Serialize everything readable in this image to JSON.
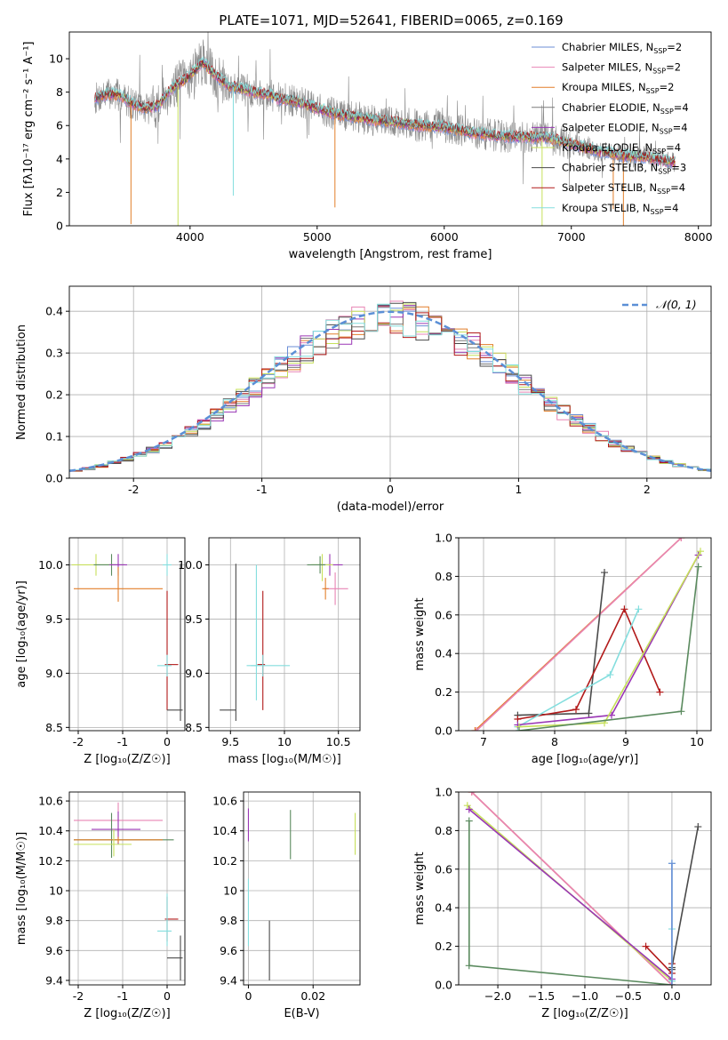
{
  "title": "PLATE=1071, MJD=52641, FIBERID=0065, z=0.169",
  "colors": {
    "chabrier_miles": "#6b8ed6",
    "salpeter_miles": "#e884b4",
    "kroupa_miles": "#e27f2a",
    "chabrier_elodie": "#7a7a7a",
    "salpeter_elodie": "#9a37b5",
    "kroupa_elodie": "#c6e05a",
    "chabrier_stelib": "#4a4a4a",
    "salpeter_stelib": "#b21a1a",
    "kroupa_stelib": "#84dede",
    "green_line": "#5a8a5e",
    "gaussian": "#5b8fd6"
  },
  "chart_data": [
    {
      "id": "spectrum",
      "type": "line",
      "title": "PLATE=1071, MJD=52641, FIBERID=0065, z=0.169",
      "xlabel": "wavelength [Angstrom, rest frame]",
      "ylabel": "Flux [fλ10⁻¹⁷ erg cm⁻² s⁻¹ A⁻¹]",
      "xlim": [
        3050,
        8100
      ],
      "ylim": [
        0,
        11.6
      ],
      "xticks": [
        4000,
        5000,
        6000,
        7000,
        8000
      ],
      "yticks": [
        0,
        2,
        4,
        6,
        8,
        10
      ],
      "grid": false,
      "legend_position": "top-right",
      "legend": [
        {
          "base": "Chabrier MILES, N",
          "sub": "SSP",
          "tail": "=2",
          "color_key": "chabrier_miles"
        },
        {
          "base": "Salpeter MILES, N",
          "sub": "SSP",
          "tail": "=2",
          "color_key": "salpeter_miles"
        },
        {
          "base": "Kroupa MILES, N",
          "sub": "SSP",
          "tail": "=2",
          "color_key": "kroupa_miles"
        },
        {
          "base": "Chabrier ELODIE, N",
          "sub": "SSP",
          "tail": "=4",
          "color_key": "chabrier_elodie"
        },
        {
          "base": "Salpeter ELODIE, N",
          "sub": "SSP",
          "tail": "=4",
          "color_key": "salpeter_elodie"
        },
        {
          "base": "Kroupa ELODIE, N",
          "sub": "SSP",
          "tail": "=4",
          "color_key": "kroupa_elodie"
        },
        {
          "base": "Chabrier STELIB, N",
          "sub": "SSP",
          "tail": "=3",
          "color_key": "chabrier_stelib"
        },
        {
          "base": "Salpeter STELIB, N",
          "sub": "SSP",
          "tail": "=4",
          "color_key": "salpeter_stelib"
        },
        {
          "base": "Kroupa STELIB, N",
          "sub": "SSP",
          "tail": "=4",
          "color_key": "kroupa_stelib"
        }
      ],
      "continuum": [
        [
          3250,
          7.6
        ],
        [
          3350,
          7.9
        ],
        [
          3450,
          7.8
        ],
        [
          3550,
          7.3
        ],
        [
          3650,
          7.0
        ],
        [
          3750,
          7.2
        ],
        [
          3850,
          8.2
        ],
        [
          3950,
          8.7
        ],
        [
          4000,
          9.0
        ],
        [
          4100,
          9.8
        ],
        [
          4200,
          9.0
        ],
        [
          4300,
          8.4
        ],
        [
          4400,
          8.2
        ],
        [
          4500,
          8.0
        ],
        [
          4600,
          7.9
        ],
        [
          4700,
          7.6
        ],
        [
          4800,
          7.5
        ],
        [
          4900,
          7.3
        ],
        [
          5000,
          7.0
        ],
        [
          5100,
          6.8
        ],
        [
          5200,
          6.6
        ],
        [
          5300,
          6.5
        ],
        [
          5400,
          6.4
        ],
        [
          5500,
          6.3
        ],
        [
          5600,
          6.2
        ],
        [
          5800,
          6.0
        ],
        [
          6000,
          5.9
        ],
        [
          6200,
          5.6
        ],
        [
          6400,
          5.4
        ],
        [
          6600,
          5.3
        ],
        [
          6800,
          5.3
        ],
        [
          7000,
          4.9
        ],
        [
          7200,
          4.5
        ],
        [
          7400,
          4.2
        ],
        [
          7600,
          4.1
        ],
        [
          7800,
          3.8
        ]
      ],
      "absorption_dips": [
        {
          "x": 3535,
          "min": 0.1,
          "series": "kroupa_miles"
        },
        {
          "x": 3905,
          "min": 0.0,
          "series": "kroupa_elodie"
        },
        {
          "x": 4340,
          "min": 1.8,
          "series": "kroupa_stelib"
        },
        {
          "x": 5140,
          "min": 1.1,
          "series": "kroupa_miles"
        },
        {
          "x": 6770,
          "min": 0.0,
          "series": "kroupa_elodie"
        },
        {
          "x": 7330,
          "min": 1.0,
          "series": "kroupa_miles"
        },
        {
          "x": 7410,
          "min": 0.0,
          "series": "kroupa_miles"
        }
      ]
    },
    {
      "id": "residuals",
      "type": "histogram",
      "xlabel": "(data-model)/error",
      "ylabel": "Normed distribution",
      "xlim": [
        -2.5,
        2.5
      ],
      "ylim": [
        0,
        0.46
      ],
      "xticks": [
        -2,
        -1,
        0,
        1,
        2
      ],
      "yticks": [
        0.0,
        0.1,
        0.2,
        0.3,
        0.4
      ],
      "grid": true,
      "legend_position": "top-right",
      "reference_curve": {
        "name": "𝒩(0, 1)",
        "style": "dashed",
        "mean": 0,
        "sigma": 1
      },
      "bin_width": 0.1
    },
    {
      "id": "age_vs_Z",
      "type": "errorbar",
      "xlabel": "Z [log₁₀(Z/Z☉)]",
      "ylabel": "age  [log₁₀(age/yr)]",
      "xlim": [
        -2.2,
        0.4
      ],
      "ylim": [
        8.47,
        10.25
      ],
      "xticks": [
        -2,
        -1,
        0
      ],
      "yticks": [
        8.5,
        9.0,
        9.5,
        10.0
      ],
      "grid": true,
      "points": [
        {
          "color_key": "kroupa_elodie",
          "x": -1.6,
          "y": 10.0,
          "xerr": [
            0.55,
            0.45
          ],
          "yerr": [
            0.1,
            0.1
          ]
        },
        {
          "color_key": "green_line",
          "x": -1.25,
          "y": 10.0,
          "xerr": [
            0.4,
            0.3
          ],
          "yerr": [
            0.1,
            0.1
          ]
        },
        {
          "color_key": "salpeter_elodie",
          "x": -1.1,
          "y": 10.0,
          "xerr": [
            0.2,
            0.2
          ],
          "yerr": [
            0.1,
            0.1
          ]
        },
        {
          "color_key": "kroupa_stelib",
          "x": 0.0,
          "y": 10.0,
          "xerr": [
            0.1,
            0.1
          ],
          "yerr": [
            0.1,
            0.1
          ]
        },
        {
          "color_key": "kroupa_miles",
          "x": -1.1,
          "y": 9.78,
          "xerr": [
            1.0,
            1.0
          ],
          "yerr": [
            0.12,
            0.2
          ]
        },
        {
          "color_key": "salpeter_stelib",
          "x": 0.0,
          "y": 9.08,
          "xerr": [
            0.05,
            0.25
          ],
          "yerr": [
            0.42,
            0.68
          ]
        },
        {
          "color_key": "kroupa_stelib",
          "x": 0.0,
          "y": 9.07,
          "xerr": [
            0.22,
            0.1
          ],
          "yerr": [
            0.1,
            0.1
          ]
        },
        {
          "color_key": "chabrier_stelib",
          "x": 0.3,
          "y": 8.66,
          "xerr": [
            0.3,
            0.05
          ],
          "yerr": [
            0.1,
            1.35
          ]
        }
      ]
    },
    {
      "id": "age_vs_mass",
      "type": "errorbar",
      "xlabel": "mass [log₁₀(M/M☉)]",
      "ylabel": "",
      "xlim": [
        9.3,
        10.7
      ],
      "ylim": [
        8.47,
        10.25
      ],
      "xticks": [
        9.5,
        10.0,
        10.5
      ],
      "yticks": [
        8.5,
        9.0,
        9.5,
        10.0
      ],
      "grid": true,
      "points": [
        {
          "color_key": "salpeter_elodie",
          "x": 10.42,
          "y": 10.0,
          "xerr": [
            0.1,
            0.12
          ],
          "yerr": [
            0.1,
            0.1
          ]
        },
        {
          "color_key": "kroupa_elodie",
          "x": 10.35,
          "y": 10.0,
          "xerr": [
            0.1,
            0.1
          ],
          "yerr": [
            0.15,
            0.1
          ]
        },
        {
          "color_key": "green_line",
          "x": 10.33,
          "y": 10.0,
          "xerr": [
            0.12,
            0.05
          ],
          "yerr": [
            0.08,
            0.08
          ]
        },
        {
          "color_key": "salpeter_miles",
          "x": 10.47,
          "y": 9.78,
          "xerr": [
            0.1,
            0.12
          ],
          "yerr": [
            0.15,
            0.15
          ]
        },
        {
          "color_key": "kroupa_miles",
          "x": 10.38,
          "y": 9.78,
          "xerr": [
            0.03,
            0.03
          ],
          "yerr": [
            0.1,
            0.1
          ]
        },
        {
          "color_key": "kroupa_stelib",
          "x": 9.74,
          "y": 9.07,
          "xerr": [
            0.05,
            0.01
          ],
          "yerr": [
            0.32,
            0.93
          ]
        },
        {
          "color_key": "salpeter_stelib",
          "x": 9.8,
          "y": 9.08,
          "xerr": [
            0.05,
            0.02
          ],
          "yerr": [
            0.42,
            0.68
          ]
        },
        {
          "color_key": "kroupa_stelib",
          "x": 9.8,
          "y": 9.07,
          "xerr": [
            0.15,
            0.25
          ],
          "yerr": [
            0.1,
            0.1
          ]
        },
        {
          "color_key": "chabrier_stelib",
          "x": 9.55,
          "y": 8.66,
          "xerr": [
            0.15,
            0.0
          ],
          "yerr": [
            0.1,
            1.35
          ]
        }
      ]
    },
    {
      "id": "massweight_vs_age",
      "type": "line",
      "xlabel": "age  [log₁₀(age/yr)]",
      "ylabel": "mass weight",
      "xlim": [
        6.65,
        10.2
      ],
      "ylim": [
        0,
        1.0
      ],
      "xticks": [
        7,
        8,
        9,
        10
      ],
      "yticks": [
        0.0,
        0.2,
        0.4,
        0.6,
        0.8,
        1.0
      ],
      "grid": true,
      "series": [
        {
          "color_key": "kroupa_miles",
          "x": [
            6.88,
            9.78
          ],
          "y": [
            0.0,
            1.0
          ]
        },
        {
          "color_key": "salpeter_miles",
          "x": [
            6.9,
            9.78
          ],
          "y": [
            0.0,
            1.0
          ]
        },
        {
          "color_key": "chabrier_stelib",
          "x": [
            7.48,
            8.48,
            8.7
          ],
          "y": [
            0.08,
            0.09,
            0.82
          ]
        },
        {
          "color_key": "salpeter_stelib",
          "x": [
            7.48,
            8.3,
            8.98,
            9.48
          ],
          "y": [
            0.06,
            0.11,
            0.63,
            0.2
          ]
        },
        {
          "color_key": "kroupa_stelib",
          "x": [
            7.48,
            8.78,
            9.18
          ],
          "y": [
            0.02,
            0.29,
            0.63
          ]
        },
        {
          "color_key": "salpeter_elodie",
          "x": [
            7.48,
            8.8,
            10.02
          ],
          "y": [
            0.03,
            0.08,
            0.91
          ]
        },
        {
          "color_key": "kroupa_elodie",
          "x": [
            7.5,
            8.7,
            10.05
          ],
          "y": [
            0.02,
            0.04,
            0.93
          ]
        },
        {
          "color_key": "green_line",
          "x": [
            7.5,
            9.78,
            10.02
          ],
          "y": [
            0.0,
            0.1,
            0.85
          ]
        }
      ]
    },
    {
      "id": "mass_vs_Z",
      "type": "errorbar",
      "xlabel": "Z [log₁₀(Z/Z☉)]",
      "ylabel": "mass [log₁₀(M/M☉)]",
      "xlim": [
        -2.2,
        0.4
      ],
      "ylim": [
        9.37,
        10.66
      ],
      "xticks": [
        -2,
        -1,
        0
      ],
      "yticks": [
        9.4,
        9.6,
        9.8,
        10.0,
        10.2,
        10.4,
        10.6
      ],
      "grid": true,
      "points": [
        {
          "color_key": "salpeter_miles",
          "x": -1.1,
          "y": 10.47,
          "xerr": [
            1.0,
            1.0
          ],
          "yerr": [
            0.12,
            0.12
          ]
        },
        {
          "color_key": "salpeter_elodie",
          "x": -1.1,
          "y": 10.41,
          "xerr": [
            0.6,
            0.5
          ],
          "yerr": [
            0.1,
            0.12
          ]
        },
        {
          "color_key": "green_line",
          "x": -1.25,
          "y": 10.34,
          "xerr": [
            0.85,
            1.4
          ],
          "yerr": [
            0.12,
            0.18
          ]
        },
        {
          "color_key": "kroupa_miles",
          "x": -1.1,
          "y": 10.34,
          "xerr": [
            1.0,
            1.0
          ],
          "yerr": [
            0.02,
            0.02
          ]
        },
        {
          "color_key": "kroupa_elodie",
          "x": -1.2,
          "y": 10.31,
          "xerr": [
            0.9,
            0.4
          ],
          "yerr": [
            0.08,
            0.1
          ]
        },
        {
          "color_key": "salpeter_stelib",
          "x": 0.0,
          "y": 9.81,
          "xerr": [
            0.05,
            0.25
          ],
          "yerr": [
            0.15,
            0.15
          ]
        },
        {
          "color_key": "kroupa_stelib",
          "x": 0.0,
          "y": 9.73,
          "xerr": [
            0.22,
            0.1
          ],
          "yerr": [
            0.1,
            0.25
          ]
        },
        {
          "color_key": "chabrier_stelib",
          "x": 0.3,
          "y": 9.55,
          "xerr": [
            0.3,
            0.05
          ],
          "yerr": [
            0.15,
            0.15
          ]
        }
      ]
    },
    {
      "id": "mass_vs_EBV",
      "type": "errorbar",
      "xlabel": "E(B-V)",
      "ylabel": "",
      "xlim": [
        -0.0015,
        0.0345
      ],
      "ylim": [
        9.37,
        10.66
      ],
      "xticks": [
        0.0,
        0.02
      ],
      "yticks": [
        9.4,
        9.6,
        9.8,
        10.0,
        10.2,
        10.4,
        10.6
      ],
      "grid": true,
      "points": [
        {
          "color_key": "salpeter_elodie",
          "x": 0.0,
          "y": 10.43,
          "yerr": [
            0.1,
            0.12
          ]
        },
        {
          "color_key": "green_line",
          "x": 0.013,
          "y": 10.36,
          "yerr": [
            0.15,
            0.18
          ]
        },
        {
          "color_key": "kroupa_elodie",
          "x": 0.033,
          "y": 10.38,
          "yerr": [
            0.14,
            0.14
          ]
        },
        {
          "color_key": "kroupa_stelib",
          "x": 0.0,
          "y": 9.73,
          "yerr": [
            0.1,
            0.35
          ]
        },
        {
          "color_key": "chabrier_stelib",
          "x": 0.0065,
          "y": 9.6,
          "yerr": [
            0.2,
            0.2
          ]
        }
      ]
    },
    {
      "id": "massweight_vs_Z",
      "type": "line",
      "xlabel": "Z [log₁₀(Z/Z☉)]",
      "ylabel": "mass weight",
      "xlim": [
        -2.45,
        0.45
      ],
      "ylim": [
        0,
        1.0
      ],
      "xticks": [
        -2.0,
        -1.5,
        -1.0,
        -0.5,
        0.0
      ],
      "xticklabels": [
        "−2.0",
        "−1.5",
        "−1.0",
        "−0.5",
        "0.0"
      ],
      "yticks": [
        0.0,
        0.2,
        0.4,
        0.6,
        0.8,
        1.0
      ],
      "grid": true,
      "series": [
        {
          "color_key": "kroupa_miles",
          "x": [
            -2.3,
            0.0
          ],
          "y": [
            1.0,
            0.0
          ]
        },
        {
          "color_key": "salpeter_miles",
          "x": [
            -2.3,
            0.0
          ],
          "y": [
            1.0,
            0.0
          ]
        },
        {
          "color_key": "kroupa_elodie",
          "x": [
            -2.35,
            0.0
          ],
          "y": [
            0.93,
            0.02
          ]
        },
        {
          "color_key": "salpeter_elodie",
          "x": [
            -2.33,
            0.0
          ],
          "y": [
            0.91,
            0.03
          ]
        },
        {
          "color_key": "green_line",
          "x": [
            -2.33,
            -2.33,
            0.0
          ],
          "y": [
            0.85,
            0.1,
            0.0
          ]
        },
        {
          "color_key": "salpeter_stelib",
          "x": [
            -0.3,
            0.0,
            0.0
          ],
          "y": [
            0.2,
            0.06,
            0.11
          ]
        },
        {
          "color_key": "chabrier_stelib",
          "x": [
            0.0,
            0.0,
            0.3
          ],
          "y": [
            0.08,
            0.09,
            0.82
          ]
        },
        {
          "color_key": "kroupa_stelib",
          "x": [
            0.0,
            0.0,
            0.0
          ],
          "y": [
            0.02,
            0.29,
            0.63
          ]
        },
        {
          "color_key": "chabrier_miles",
          "x": [
            0.0,
            0.0
          ],
          "y": [
            0.0,
            0.63
          ]
        }
      ]
    }
  ]
}
